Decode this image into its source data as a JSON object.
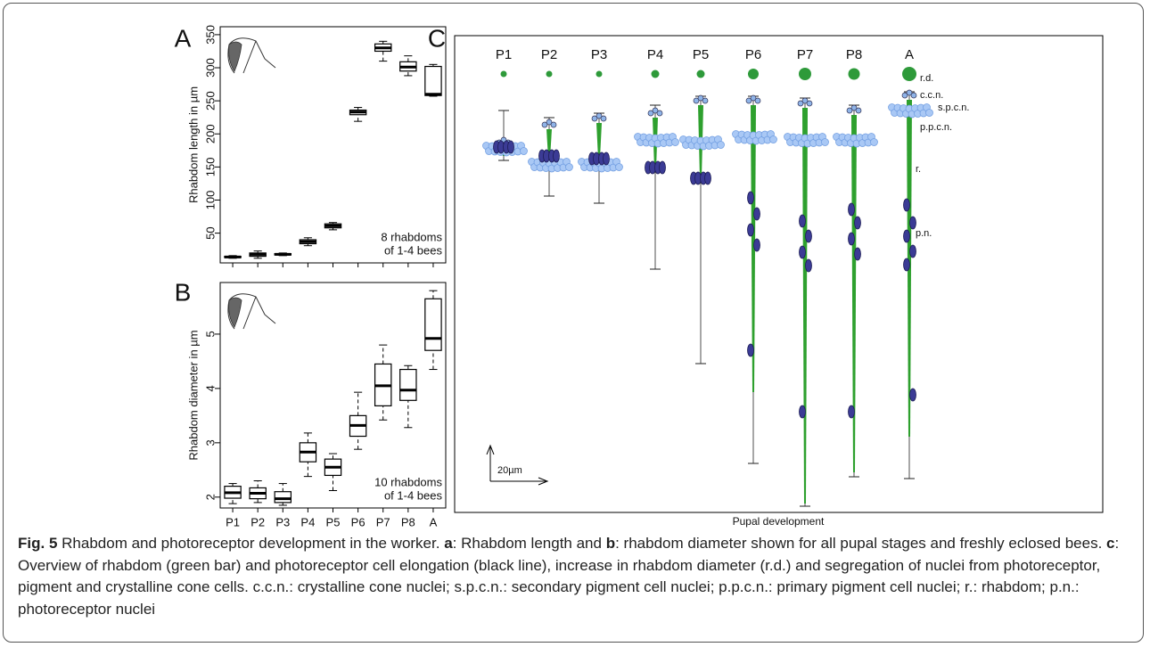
{
  "chart_data": [
    {
      "type": "box",
      "panel": "A",
      "ylabel": "Rhabdom length in µm",
      "categories": [
        null,
        null,
        null,
        null,
        null,
        null,
        null,
        null,
        null
      ],
      "min": [
        12,
        12,
        16,
        31,
        55,
        219,
        310,
        288,
        257
      ],
      "q1": [
        13,
        15,
        17,
        34,
        58,
        229,
        325,
        295,
        258
      ],
      "median": [
        14,
        18,
        18,
        37,
        61,
        233,
        330,
        301,
        260
      ],
      "q3": [
        15,
        20,
        19,
        40,
        64,
        236,
        336,
        309,
        302
      ],
      "max": [
        16,
        23,
        20,
        43,
        66,
        240,
        340,
        318,
        305
      ],
      "ylim": [
        5,
        362
      ],
      "yticks": [
        50,
        100,
        150,
        200,
        250,
        300,
        350
      ],
      "annotation": [
        "8 rhabdoms",
        "of 1-4 bees"
      ]
    },
    {
      "type": "box",
      "panel": "B",
      "ylabel": "Rhabdom diameter in µm",
      "categories": [
        "P1",
        "P2",
        "P3",
        "P4",
        "P5",
        "P6",
        "P7",
        "P8",
        "A"
      ],
      "min": [
        1.88,
        1.9,
        1.85,
        2.38,
        2.12,
        2.88,
        3.42,
        3.28,
        4.35
      ],
      "q1": [
        1.98,
        1.97,
        1.9,
        2.65,
        2.4,
        3.12,
        3.68,
        3.78,
        4.7
      ],
      "median": [
        2.08,
        2.07,
        1.97,
        2.83,
        2.55,
        3.32,
        4.05,
        3.97,
        4.92
      ],
      "q3": [
        2.2,
        2.17,
        2.1,
        3.0,
        2.7,
        3.5,
        4.45,
        4.35,
        5.65
      ],
      "max": [
        2.25,
        2.3,
        2.25,
        3.18,
        2.8,
        3.93,
        4.8,
        4.42,
        5.8
      ],
      "ylim": [
        1.8,
        5.95
      ],
      "yticks": [
        2,
        3,
        4,
        5
      ],
      "annotation": [
        "10 rhabdoms",
        "of 1-4 bees"
      ]
    }
  ],
  "diagram": {
    "panel": "C",
    "stages": [
      "P1",
      "P2",
      "P3",
      "P4",
      "P5",
      "P6",
      "P7",
      "P8",
      "A"
    ],
    "labels": [
      "r.d.",
      "c.c.n.",
      "s.p.c.n.",
      "p.p.c.n.",
      "r.",
      "p.n."
    ],
    "scale": "20µm",
    "xlabel": "Pupal development"
  },
  "caption": [
    "Fig. 5",
    "Rhabdom and photoreceptor development in the worker.",
    "a",
    ": Rhabdom length and",
    "b",
    ": rhabdom diameter shown for all pupal stages and freshly eclosed bees.",
    "c",
    ": Overview of rhabdom (green bar) and photoreceptor cell elongation (black line), increase in rhabdom diameter (r.d.) and segregation of nuclei from photoreceptor, pigment and crystalline cone cells. c.c.n.: crystalline cone nuclei; s.p.c.n.: secondary pigment cell nuclei; p.p.c.n.: primary pigment cell nuclei; r.: rhabdom; p.n.: photoreceptor nuclei"
  ]
}
